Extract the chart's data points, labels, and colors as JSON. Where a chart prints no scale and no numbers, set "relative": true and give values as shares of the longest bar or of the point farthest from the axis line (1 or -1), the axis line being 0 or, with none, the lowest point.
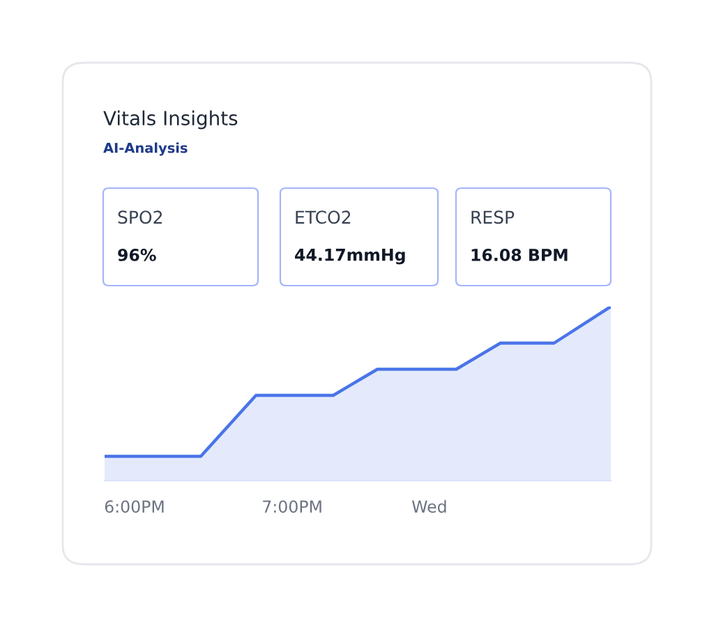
{
  "chart_data": {
    "type": "area",
    "title": "Vitals Insights",
    "subtitle": "AI-Analysis",
    "annotations": [
      "SPO2",
      "96%",
      "ETCO2",
      "44.17mmHg",
      "RESP",
      "16.08 BPM"
    ],
    "relative": true,
    "x": [
      17.81,
      18.42,
      18.77,
      19.26,
      19.54,
      20.04,
      20.32,
      20.66,
      21.02
    ],
    "series": [
      {
        "color": "#4a74e8",
        "values": [
          0.14,
          0.14,
          0.49,
          0.49,
          0.64,
          0.64,
          0.79,
          0.79,
          1
        ]
      }
    ],
    "xlim": [
      17.81,
      21.02
    ],
    "xticks": [
      {
        "value": 18,
        "label": "6:00PM"
      },
      {
        "value": 19,
        "label": "7:00PM"
      },
      {
        "value": 19.87,
        "label": "Wed"
      }
    ],
    "grid": false,
    "legend": false,
    "marker": "none",
    "line_style": "solid"
  }
}
